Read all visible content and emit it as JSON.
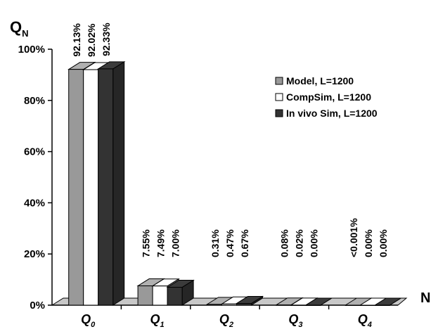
{
  "chart_data": {
    "type": "bar",
    "ylabel": "Q",
    "ylabel_subscript": "N",
    "xlabel": "N",
    "ylim": [
      0,
      100
    ],
    "yticks": [
      "0%",
      "20%",
      "40%",
      "60%",
      "80%",
      "100%"
    ],
    "categories": [
      {
        "main": "Q",
        "sub": "0"
      },
      {
        "main": "Q",
        "sub": "1"
      },
      {
        "main": "Q",
        "sub": "2"
      },
      {
        "main": "Q",
        "sub": "3"
      },
      {
        "main": "Q",
        "sub": "4"
      }
    ],
    "series": [
      {
        "name": "Model, L=1200",
        "color": "#999999",
        "values": [
          92.13,
          7.55,
          0.31,
          0.08,
          0.001
        ],
        "labels": [
          "92.13%",
          "7.55%",
          "0.31%",
          "0.08%",
          "<0.001%"
        ]
      },
      {
        "name": "CompSim, L=1200",
        "color": "#ffffff",
        "values": [
          92.02,
          7.49,
          0.47,
          0.02,
          0.0
        ],
        "labels": [
          "92.02%",
          "7.49%",
          "0.47%",
          "0.02%",
          "0.00%"
        ]
      },
      {
        "name": "In vivo Sim, L=1200",
        "color": "#333333",
        "values": [
          92.33,
          7.0,
          0.67,
          0.0,
          0.0
        ],
        "labels": [
          "92.33%",
          "7.00%",
          "0.67%",
          "0.00%",
          "0.00%"
        ]
      }
    ],
    "legend_position": "upper-right",
    "grid": false,
    "style": "3d-column"
  }
}
